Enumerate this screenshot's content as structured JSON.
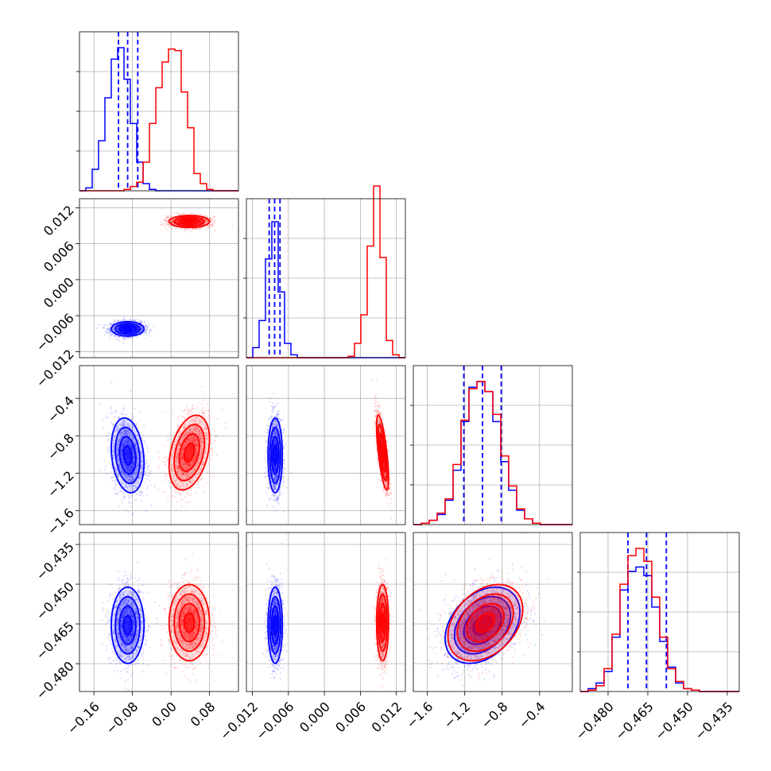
{
  "chart_data": {
    "type": "corner",
    "xlabel": "",
    "ylabel": "",
    "grid": true,
    "legend": "none",
    "colors": {
      "series_a": "#0000ff",
      "series_b": "#ff0000"
    },
    "parameters": [
      {
        "range": [
          -0.19,
          0.14
        ],
        "ticks": [
          "−0.16",
          "−0.08",
          "0.00",
          "0.08"
        ],
        "tick_values": [
          -0.16,
          -0.08,
          0.0,
          0.08
        ]
      },
      {
        "range": [
          -0.013,
          0.0135
        ],
        "ticks": [
          "−0.012",
          "−0.006",
          "0.000",
          "0.006",
          "0.012"
        ],
        "tick_values": [
          -0.012,
          -0.006,
          0.0,
          0.006,
          0.012
        ]
      },
      {
        "range": [
          -1.75,
          -0.05
        ],
        "ticks": [
          "−1.6",
          "−1.2",
          "−0.8",
          "−0.4"
        ],
        "tick_values": [
          -1.6,
          -1.2,
          -0.8,
          -0.4
        ]
      },
      {
        "range": [
          -0.4905,
          -0.4305
        ],
        "ticks": [
          "−0.480",
          "−0.465",
          "−0.450",
          "−0.435"
        ],
        "tick_values": [
          -0.48,
          -0.465,
          -0.45,
          -0.435
        ]
      }
    ],
    "series": [
      {
        "color": "#0000ff",
        "means": [
          -0.09,
          -0.0082,
          -1.01,
          -0.4655
        ],
        "stds": [
          0.017,
          0.0006,
          0.2,
          0.0072
        ],
        "correlations": [
          [
            0,
            2,
            -0.2
          ],
          [
            2,
            3,
            0.35
          ]
        ],
        "quantiles": [
          [
            -0.109,
            -0.09,
            -0.069
          ],
          [
            -0.0092,
            -0.0083,
            -0.0074
          ],
          [
            -1.21,
            -1.01,
            -0.81
          ],
          [
            -0.4725,
            -0.4655,
            -0.458
          ]
        ],
        "histograms": [
          [
            0,
            0.02,
            0.15,
            0.35,
            0.65,
            0.92,
            1.0,
            0.78,
            0.47,
            0.2,
            0.05,
            0.01,
            0,
            0,
            0,
            0,
            0,
            0,
            0,
            0,
            0,
            0,
            0,
            0,
            0
          ],
          [
            0,
            0.07,
            0.26,
            0.69,
            0.95,
            0.46,
            0.1,
            0.02,
            0,
            0,
            0,
            0,
            0,
            0,
            0,
            0,
            0,
            0,
            0,
            0,
            0,
            0,
            0,
            0,
            0
          ],
          [
            0,
            0.01,
            0.03,
            0.07,
            0.17,
            0.38,
            0.72,
            0.96,
            1.0,
            0.93,
            0.72,
            0.44,
            0.24,
            0.1,
            0.04,
            0.01,
            0,
            0,
            0,
            0
          ],
          [
            0,
            0.02,
            0.06,
            0.14,
            0.38,
            0.71,
            0.84,
            0.87,
            0.81,
            0.59,
            0.35,
            0.17,
            0.06,
            0.02,
            0.01,
            0,
            0,
            0,
            0,
            0
          ]
        ]
      },
      {
        "color": "#ff0000",
        "means": [
          0.038,
          0.0097,
          -0.98,
          -0.4645
        ],
        "stds": [
          0.021,
          0.0005,
          0.2,
          0.0072
        ],
        "correlations": [
          [
            0,
            2,
            0.35
          ],
          [
            1,
            2,
            -0.7
          ],
          [
            2,
            3,
            0.35
          ]
        ],
        "quantiles": null,
        "histograms": [
          [
            0,
            0,
            0,
            0,
            0,
            0,
            0,
            0.01,
            0.03,
            0.06,
            0.2,
            0.47,
            0.72,
            0.9,
            0.99,
            0.98,
            0.69,
            0.44,
            0.12,
            0.05,
            0.01,
            0.0,
            0,
            0,
            0
          ],
          [
            0,
            0,
            0,
            0,
            0,
            0,
            0,
            0,
            0,
            0,
            0,
            0,
            0,
            0,
            0,
            0,
            0.01,
            0.1,
            0.3,
            0.78,
            1.2,
            0.7,
            0.12,
            0.02,
            0
          ],
          [
            0,
            0.01,
            0.03,
            0.08,
            0.18,
            0.42,
            0.73,
            0.95,
            1.0,
            0.93,
            0.77,
            0.48,
            0.27,
            0.11,
            0.04,
            0.01,
            0,
            0,
            0,
            0
          ],
          [
            0,
            0.01,
            0.04,
            0.16,
            0.4,
            0.75,
            0.95,
            1.0,
            0.91,
            0.66,
            0.38,
            0.16,
            0.07,
            0.02,
            0.01,
            0,
            0,
            0,
            0,
            0
          ]
        ]
      }
    ]
  }
}
